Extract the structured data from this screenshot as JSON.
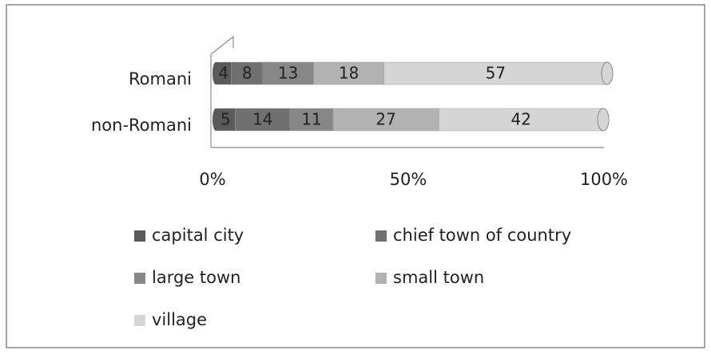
{
  "chart_data": {
    "type": "stacked-bar-horizontal",
    "categories": [
      "Romani",
      "non-Romani"
    ],
    "series": [
      {
        "name": "capital city",
        "color": "#5a5a5a",
        "values": [
          4,
          5
        ]
      },
      {
        "name": "chief town of country",
        "color": "#707070",
        "values": [
          8,
          14
        ]
      },
      {
        "name": "large town",
        "color": "#878787",
        "values": [
          13,
          11
        ]
      },
      {
        "name": "small town",
        "color": "#b2b2b2",
        "values": [
          18,
          27
        ]
      },
      {
        "name": "village",
        "color": "#d6d6d6",
        "values": [
          57,
          42
        ]
      }
    ],
    "xlim": [
      0,
      100
    ],
    "xticks": [
      {
        "value": 0,
        "label": "0%"
      },
      {
        "value": 50,
        "label": "50%"
      },
      {
        "value": 100,
        "label": "100%"
      }
    ],
    "legend": "bottom"
  }
}
